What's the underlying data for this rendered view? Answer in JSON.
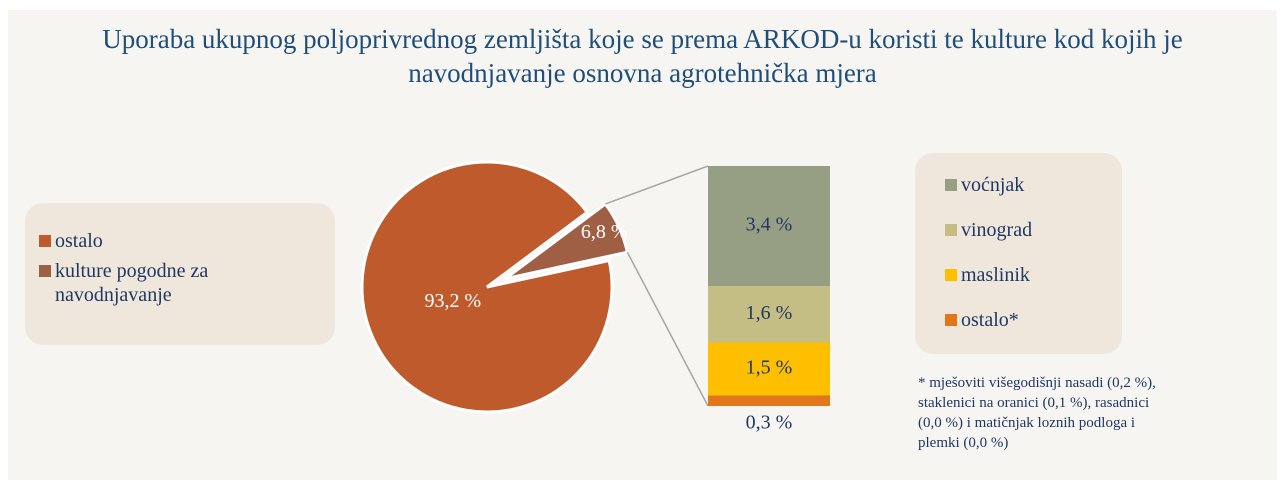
{
  "chart_data": {
    "type": "pie",
    "title": "Uporaba ukupnog poljoprivrednog zemljišta koje se prema ARKOD-u koristi te kulture kod kojih je navodnjavanje osnovna agrotehnička mjera",
    "categories": [
      "ostalo",
      "kulture pogodne za navodnjavanje"
    ],
    "values": [
      93.2,
      6.8
    ],
    "value_labels": [
      "93,2 %",
      "6,8 %"
    ],
    "colors": [
      "#be5a2b",
      "#9e5f45"
    ],
    "breakdown": {
      "type": "bar",
      "categories": [
        "voćnjak",
        "vinograd",
        "maslinik",
        "ostalo*"
      ],
      "values": [
        3.4,
        1.6,
        1.5,
        0.3
      ],
      "value_labels": [
        "3,4 %",
        "1,6 %",
        "1,5 %",
        "0,3 %"
      ],
      "colors": [
        "#969f84",
        "#c4bd84",
        "#fdbf00",
        "#e2761b"
      ]
    },
    "note": "* mješoviti višegodišnji nasadi (0,2 %), staklenici na oranici (0,1 %), rasadnici (0,0 %) i matičnjak loznih podloga i plemki (0,0 %)"
  }
}
